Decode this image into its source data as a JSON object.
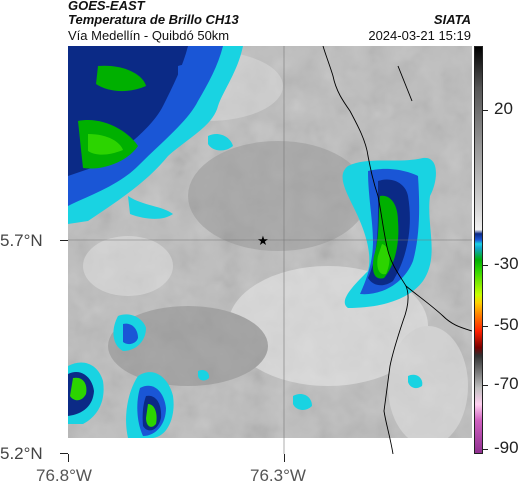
{
  "header": {
    "satellite": "GOES-EAST",
    "product": "Temperatura de Brillo CH13",
    "route": "Vía Medellín - Quibdó 50km",
    "org": "SIATA",
    "timestamp": "2024-03-21 15:19"
  },
  "axes": {
    "lat_labels": [
      "5.7°N",
      "5.2°N"
    ],
    "lon_labels": [
      "76.8°W",
      "76.3°W"
    ]
  },
  "colorbar": {
    "ticks": [
      "20",
      "-30",
      "-50",
      "-70",
      "-90"
    ]
  },
  "map": {
    "marker_icon": "star-icon",
    "colors": {
      "background": "#bdbdbd",
      "cold_dark": "#0b2a86",
      "cold_blue": "#1a56d6",
      "cyan": "#19d3e2",
      "green": "#00b000",
      "bright_green": "#2cd400",
      "border": "#000000"
    }
  }
}
